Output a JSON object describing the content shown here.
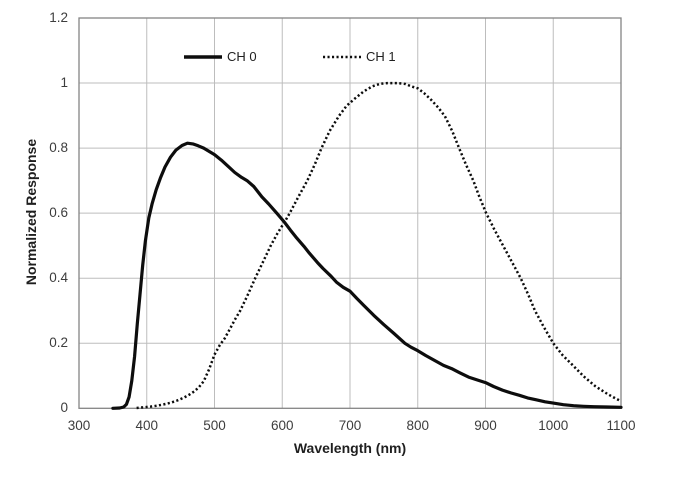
{
  "colors": {
    "curve": "#0d0d0d",
    "grid": "#bdbdbd",
    "plot_border": "#848484",
    "tick_text": "#3d3d3d",
    "axis_title_text": "#1f1f1f",
    "background": "#ffffff"
  },
  "chart_data": {
    "type": "line",
    "title": "",
    "xlabel": "Wavelength (nm)",
    "ylabel": "Normalized Response",
    "xlim": [
      300,
      1100
    ],
    "ylim": [
      0,
      1.2
    ],
    "x_ticks": [
      300,
      400,
      500,
      600,
      700,
      800,
      900,
      1000,
      1100
    ],
    "y_ticks": [
      0,
      0.2,
      0.4,
      0.6,
      0.8,
      1,
      1.2
    ],
    "y_tick_labels": [
      "0",
      "0.2",
      "0.4",
      "0.6",
      "0.8",
      "1",
      "1.2"
    ],
    "grid": true,
    "legend_position": "top-inside",
    "series": [
      {
        "name": "CH 0",
        "line_style": "solid",
        "color": "#0d0d0d",
        "points": [
          [
            350,
            0
          ],
          [
            360,
            0.001
          ],
          [
            366,
            0.004
          ],
          [
            370,
            0.012
          ],
          [
            374,
            0.035
          ],
          [
            378,
            0.085
          ],
          [
            382,
            0.16
          ],
          [
            386,
            0.26
          ],
          [
            390,
            0.35
          ],
          [
            394,
            0.44
          ],
          [
            398,
            0.515
          ],
          [
            403,
            0.585
          ],
          [
            408,
            0.63
          ],
          [
            414,
            0.672
          ],
          [
            420,
            0.707
          ],
          [
            427,
            0.742
          ],
          [
            435,
            0.772
          ],
          [
            443,
            0.794
          ],
          [
            452,
            0.808
          ],
          [
            460,
            0.815
          ],
          [
            468,
            0.813
          ],
          [
            476,
            0.807
          ],
          [
            484,
            0.8
          ],
          [
            492,
            0.79
          ],
          [
            500,
            0.78
          ],
          [
            510,
            0.763
          ],
          [
            520,
            0.744
          ],
          [
            530,
            0.725
          ],
          [
            540,
            0.71
          ],
          [
            548,
            0.7
          ],
          [
            558,
            0.682
          ],
          [
            570,
            0.65
          ],
          [
            580,
            0.628
          ],
          [
            592,
            0.6
          ],
          [
            604,
            0.57
          ],
          [
            612,
            0.548
          ],
          [
            620,
            0.527
          ],
          [
            632,
            0.498
          ],
          [
            640,
            0.477
          ],
          [
            652,
            0.448
          ],
          [
            660,
            0.43
          ],
          [
            672,
            0.406
          ],
          [
            680,
            0.388
          ],
          [
            690,
            0.372
          ],
          [
            700,
            0.36
          ],
          [
            710,
            0.338
          ],
          [
            720,
            0.317
          ],
          [
            735,
            0.286
          ],
          [
            750,
            0.257
          ],
          [
            765,
            0.23
          ],
          [
            781,
            0.2
          ],
          [
            790,
            0.188
          ],
          [
            800,
            0.177
          ],
          [
            812,
            0.162
          ],
          [
            825,
            0.147
          ],
          [
            838,
            0.132
          ],
          [
            850,
            0.122
          ],
          [
            862,
            0.109
          ],
          [
            875,
            0.096
          ],
          [
            888,
            0.087
          ],
          [
            900,
            0.079
          ],
          [
            912,
            0.067
          ],
          [
            925,
            0.056
          ],
          [
            938,
            0.047
          ],
          [
            950,
            0.04
          ],
          [
            962,
            0.032
          ],
          [
            975,
            0.026
          ],
          [
            988,
            0.02
          ],
          [
            1000,
            0.016
          ],
          [
            1015,
            0.011
          ],
          [
            1030,
            0.008
          ],
          [
            1045,
            0.006
          ],
          [
            1060,
            0.005
          ],
          [
            1080,
            0.004
          ],
          [
            1100,
            0.003
          ]
        ]
      },
      {
        "name": "CH 1",
        "line_style": "dotted",
        "color": "#0d0d0d",
        "points": [
          [
            385,
            0.001
          ],
          [
            395,
            0.003
          ],
          [
            405,
            0.005
          ],
          [
            415,
            0.008
          ],
          [
            425,
            0.012
          ],
          [
            435,
            0.017
          ],
          [
            445,
            0.024
          ],
          [
            455,
            0.033
          ],
          [
            463,
            0.042
          ],
          [
            470,
            0.052
          ],
          [
            477,
            0.065
          ],
          [
            484,
            0.083
          ],
          [
            492,
            0.12
          ],
          [
            500,
            0.165
          ],
          [
            508,
            0.195
          ],
          [
            515,
            0.215
          ],
          [
            523,
            0.245
          ],
          [
            530,
            0.272
          ],
          [
            538,
            0.3
          ],
          [
            550,
            0.353
          ],
          [
            560,
            0.4
          ],
          [
            572,
            0.452
          ],
          [
            583,
            0.5
          ],
          [
            593,
            0.538
          ],
          [
            604,
            0.575
          ],
          [
            611,
            0.6
          ],
          [
            625,
            0.655
          ],
          [
            637,
            0.7
          ],
          [
            648,
            0.75
          ],
          [
            658,
            0.8
          ],
          [
            670,
            0.853
          ],
          [
            684,
            0.9
          ],
          [
            695,
            0.93
          ],
          [
            707,
            0.952
          ],
          [
            720,
            0.974
          ],
          [
            733,
            0.99
          ],
          [
            745,
            0.998
          ],
          [
            755,
            1.0
          ],
          [
            770,
            1.0
          ],
          [
            782,
            0.997
          ],
          [
            790,
            0.99
          ],
          [
            800,
            0.984
          ],
          [
            810,
            0.968
          ],
          [
            820,
            0.948
          ],
          [
            830,
            0.925
          ],
          [
            840,
            0.898
          ],
          [
            851,
            0.852
          ],
          [
            861,
            0.8
          ],
          [
            871,
            0.75
          ],
          [
            882,
            0.7
          ],
          [
            891,
            0.65
          ],
          [
            901,
            0.6
          ],
          [
            913,
            0.55
          ],
          [
            926,
            0.5
          ],
          [
            939,
            0.45
          ],
          [
            952,
            0.4
          ],
          [
            963,
            0.35
          ],
          [
            973,
            0.3
          ],
          [
            986,
            0.25
          ],
          [
            1000,
            0.2
          ],
          [
            1014,
            0.163
          ],
          [
            1028,
            0.134
          ],
          [
            1045,
            0.098
          ],
          [
            1062,
            0.068
          ],
          [
            1080,
            0.044
          ],
          [
            1092,
            0.03
          ],
          [
            1100,
            0.022
          ]
        ]
      }
    ]
  }
}
